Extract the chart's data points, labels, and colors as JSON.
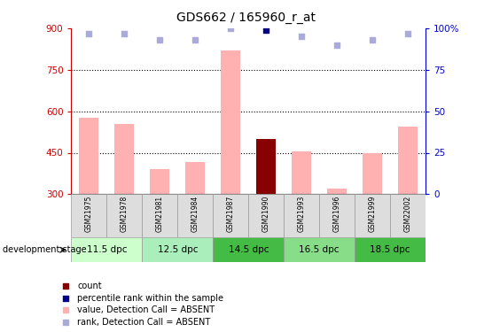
{
  "title": "GDS662 / 165960_r_at",
  "samples": [
    "GSM21975",
    "GSM21978",
    "GSM21981",
    "GSM21984",
    "GSM21987",
    "GSM21990",
    "GSM21993",
    "GSM21996",
    "GSM21999",
    "GSM22002"
  ],
  "bar_values": [
    575,
    555,
    390,
    415,
    820,
    500,
    455,
    320,
    450,
    545
  ],
  "bar_colors": [
    "#ffb0b0",
    "#ffb0b0",
    "#ffb0b0",
    "#ffb0b0",
    "#ffb0b0",
    "#880000",
    "#ffb0b0",
    "#ffb0b0",
    "#ffb0b0",
    "#ffb0b0"
  ],
  "rank_values": [
    97,
    97,
    93,
    93,
    100,
    99,
    95,
    90,
    93,
    97
  ],
  "rank_colors": [
    "#aaaadd",
    "#aaaadd",
    "#aaaadd",
    "#aaaadd",
    "#aaaadd",
    "#000088",
    "#aaaadd",
    "#aaaadd",
    "#aaaadd",
    "#aaaadd"
  ],
  "bar_bottom": 300,
  "ylim_left": [
    300,
    900
  ],
  "ylim_right": [
    0,
    100
  ],
  "yticks_left": [
    300,
    450,
    600,
    750,
    900
  ],
  "yticks_right": [
    0,
    25,
    50,
    75,
    100
  ],
  "ytick_labels_right": [
    "0",
    "25",
    "50",
    "75",
    "100%"
  ],
  "hgrid_lines": [
    450,
    600,
    750
  ],
  "groups": [
    {
      "label": "11.5 dpc",
      "indices": [
        0,
        1
      ],
      "color": "#ccffcc"
    },
    {
      "label": "12.5 dpc",
      "indices": [
        2,
        3
      ],
      "color": "#aaeebb"
    },
    {
      "label": "14.5 dpc",
      "indices": [
        4,
        5
      ],
      "color": "#44bb44"
    },
    {
      "label": "16.5 dpc",
      "indices": [
        6,
        7
      ],
      "color": "#88dd88"
    },
    {
      "label": "18.5 dpc",
      "indices": [
        8,
        9
      ],
      "color": "#44bb44"
    }
  ],
  "legend_items": [
    {
      "label": "count",
      "color": "#880000"
    },
    {
      "label": "percentile rank within the sample",
      "color": "#000088"
    },
    {
      "label": "value, Detection Call = ABSENT",
      "color": "#ffb0b0"
    },
    {
      "label": "rank, Detection Call = ABSENT",
      "color": "#aaaadd"
    }
  ],
  "dev_stage_label": "development stage",
  "axis_color_left": "#cc0000",
  "axis_color_right": "#0000cc"
}
